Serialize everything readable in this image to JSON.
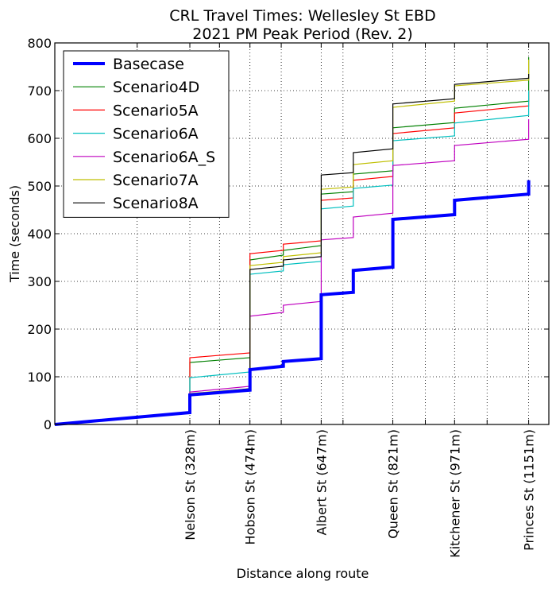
{
  "chart_data": {
    "type": "line",
    "title": [
      "CRL Travel Times: Wellesley St EBD",
      "2021 PM Peak Period (Rev. 2)"
    ],
    "xlabel": "Distance along route",
    "ylabel": "Time (seconds)",
    "ylim": [
      0,
      800
    ],
    "xlim": [
      0,
      1200
    ],
    "yticks": [
      0,
      100,
      200,
      300,
      400,
      500,
      600,
      700,
      800
    ],
    "grid": true,
    "legend_position": "top-left",
    "stop_ticks": [
      {
        "x": 328,
        "label": "Nelson St (328m)"
      },
      {
        "x": 474,
        "label": "Hobson St (474m)"
      },
      {
        "x": 647,
        "label": "Albert St (647m)"
      },
      {
        "x": 821,
        "label": "Queen St (821m)"
      },
      {
        "x": 971,
        "label": "Kitchener St (971m)"
      },
      {
        "x": 1151,
        "label": "Princes St (1151m)"
      }
    ],
    "minor_grid_x": [
      0,
      200,
      400,
      550,
      700,
      900,
      1050,
      1200
    ],
    "series": [
      {
        "name": "Basecase",
        "color": "#0000ff",
        "width": 4,
        "x": [
          0,
          328,
          328,
          474,
          474,
          555,
          555,
          647,
          647,
          725,
          725,
          821,
          821,
          971,
          971,
          1151,
          1151
        ],
        "y": [
          0,
          25,
          62,
          72,
          115,
          122,
          132,
          138,
          272,
          277,
          323,
          330,
          430,
          440,
          470,
          483,
          512
        ]
      },
      {
        "name": "Scenario4D",
        "color": "#008000",
        "width": 1.2,
        "x": [
          0,
          328,
          328,
          474,
          474,
          555,
          555,
          647,
          647,
          725,
          725,
          821,
          821,
          971,
          971,
          1151,
          1151
        ],
        "y": [
          0,
          25,
          130,
          140,
          345,
          355,
          365,
          375,
          483,
          488,
          525,
          532,
          622,
          633,
          663,
          678,
          770
        ]
      },
      {
        "name": "Scenario5A",
        "color": "#ff0000",
        "width": 1.2,
        "x": [
          0,
          328,
          328,
          474,
          474,
          555,
          555,
          647,
          647,
          725,
          725,
          821,
          821,
          971,
          971,
          1151,
          1151
        ],
        "y": [
          0,
          25,
          140,
          150,
          358,
          365,
          378,
          385,
          470,
          475,
          512,
          520,
          610,
          622,
          653,
          668,
          700
        ]
      },
      {
        "name": "Scenario6A",
        "color": "#00bfbf",
        "width": 1.2,
        "x": [
          0,
          328,
          328,
          474,
          474,
          555,
          555,
          647,
          647,
          725,
          725,
          821,
          821,
          971,
          971,
          1151,
          1151
        ],
        "y": [
          0,
          25,
          98,
          110,
          315,
          322,
          335,
          342,
          452,
          458,
          495,
          502,
          595,
          605,
          632,
          648,
          700
        ]
      },
      {
        "name": "Scenario6A_S",
        "color": "#bf00bf",
        "width": 1.2,
        "x": [
          0,
          328,
          328,
          474,
          474,
          555,
          555,
          647,
          647,
          725,
          725,
          821,
          821,
          971,
          971,
          1151,
          1151
        ],
        "y": [
          0,
          25,
          68,
          80,
          227,
          235,
          250,
          258,
          387,
          392,
          435,
          443,
          543,
          553,
          585,
          598,
          640
        ]
      },
      {
        "name": "Scenario7A",
        "color": "#bfbf00",
        "width": 1.2,
        "x": [
          0,
          328,
          328,
          474,
          474,
          555,
          555,
          647,
          647,
          725,
          725,
          821,
          821,
          971,
          971,
          1151,
          1151
        ],
        "y": [
          0,
          25,
          65,
          75,
          333,
          340,
          352,
          360,
          493,
          498,
          545,
          553,
          665,
          678,
          710,
          722,
          765
        ]
      },
      {
        "name": "Scenario8A",
        "color": "#000000",
        "width": 1.2,
        "x": [
          0,
          328,
          328,
          474,
          474,
          555,
          555,
          647,
          647,
          725,
          725,
          821,
          821,
          971,
          971,
          1151,
          1151
        ],
        "y": [
          0,
          25,
          62,
          75,
          325,
          332,
          345,
          352,
          523,
          528,
          570,
          578,
          672,
          683,
          713,
          726,
          735
        ]
      }
    ]
  }
}
